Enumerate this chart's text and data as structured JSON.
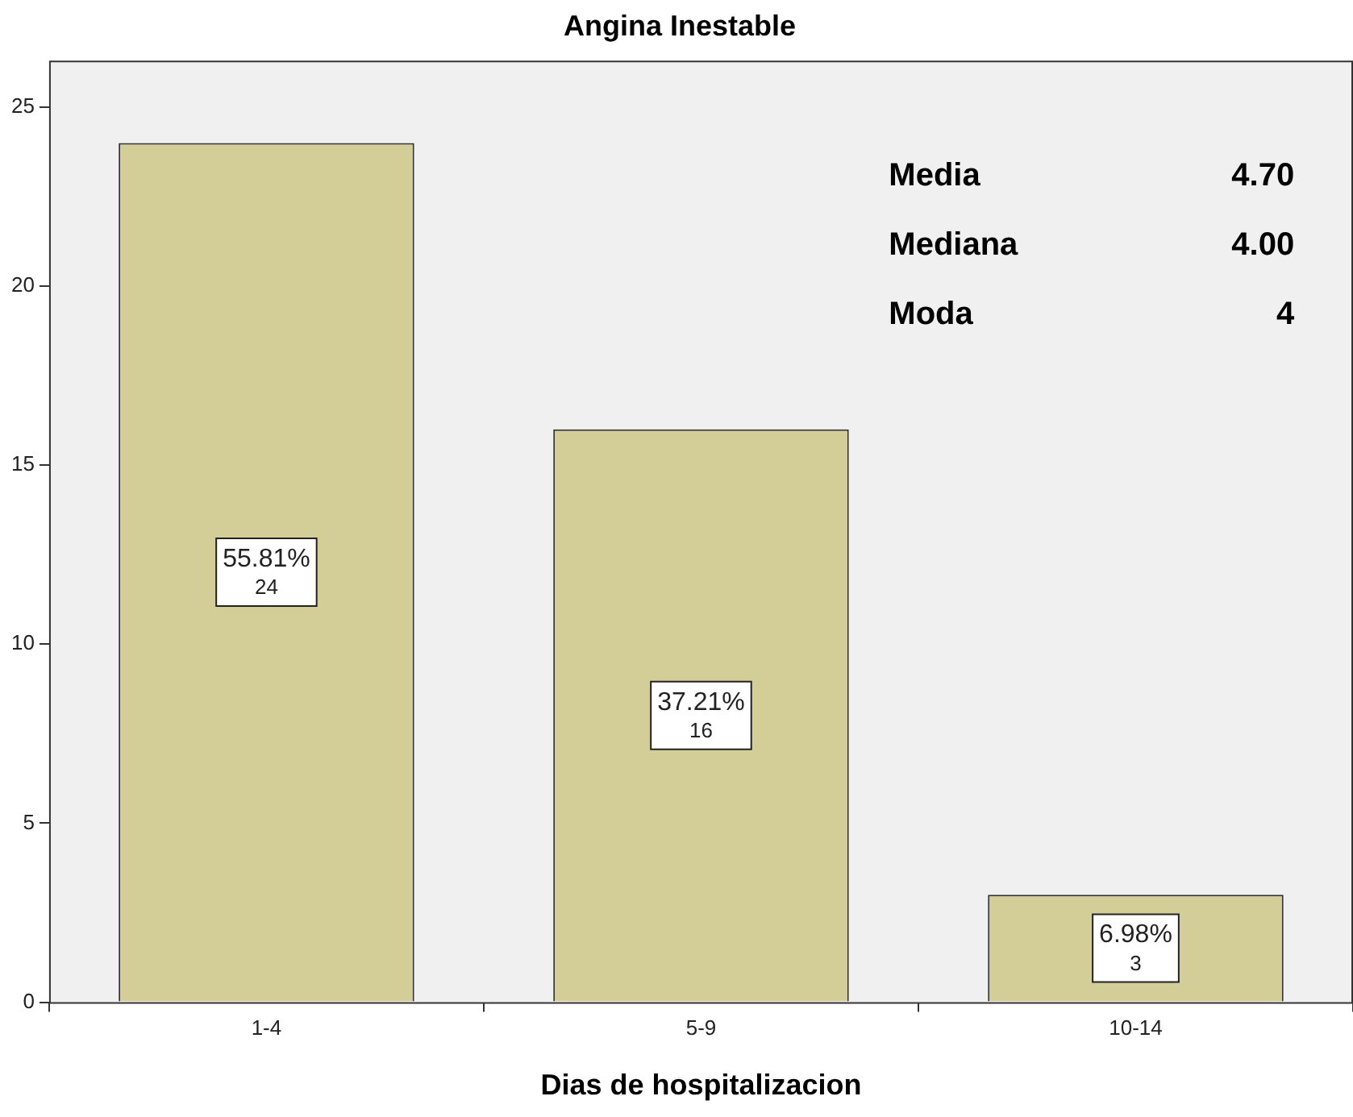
{
  "chart_data": {
    "type": "bar",
    "title": "Angina Inestable",
    "xlabel": "Dias de hospitalizacion",
    "categories": [
      "1-4",
      "5-9",
      "10-14"
    ],
    "values": [
      24,
      16,
      3
    ],
    "color": "#d3ce97",
    "value_labels": [
      "55.81%\n24",
      "37.21%\n16",
      "6.98%\n3"
    ],
    "ylim": [
      0,
      26.3
    ],
    "yticks": [
      0,
      5,
      10,
      15,
      20,
      25
    ],
    "grid": false,
    "legend": false,
    "annotations": [
      "Media",
      "4.70",
      "Mediana",
      "4.00",
      "Moda",
      "4"
    ]
  }
}
